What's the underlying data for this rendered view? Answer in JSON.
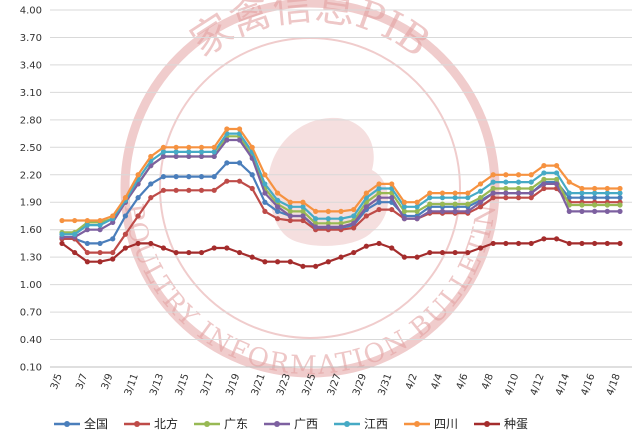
{
  "watermark": {
    "text_top": "家禽信息PIB",
    "text_bottom": "POULTRY INFORMATION BULLETIN",
    "color": "#e3a2a2"
  },
  "chart_data": {
    "type": "line",
    "title": "",
    "xlabel": "",
    "ylabel": "",
    "ylim": [
      0.1,
      4.0
    ],
    "yticks": [
      "0.10",
      "0.40",
      "0.70",
      "1.00",
      "1.30",
      "1.60",
      "1.90",
      "2.20",
      "2.50",
      "2.80",
      "3.10",
      "3.40",
      "3.70",
      "4.00"
    ],
    "grid": "horizontal",
    "legend_position": "bottom",
    "x": [
      "3/5",
      "3/6",
      "3/7",
      "3/8",
      "3/9",
      "3/10",
      "3/11",
      "3/12",
      "3/13",
      "3/14",
      "3/15",
      "3/16",
      "3/17",
      "3/18",
      "3/19",
      "3/20",
      "3/21",
      "3/22",
      "3/23",
      "3/24",
      "3/25",
      "3/26",
      "3/27",
      "3/28",
      "3/29",
      "3/30",
      "3/31",
      "4/1",
      "4/2",
      "4/3",
      "4/4",
      "4/5",
      "4/6",
      "4/7",
      "4/8",
      "4/9",
      "4/10",
      "4/11",
      "4/12",
      "4/13",
      "4/14",
      "4/15",
      "4/16",
      "4/17",
      "4/18"
    ],
    "x_tick_labels": [
      "3/5",
      "3/7",
      "3/9",
      "3/11",
      "3/13",
      "3/15",
      "3/17",
      "3/19",
      "3/21",
      "3/23",
      "3/25",
      "3/27",
      "3/29",
      "3/31",
      "4/2",
      "4/4",
      "4/6",
      "4/8",
      "4/10",
      "4/12",
      "4/14",
      "4/16",
      "4/18"
    ],
    "series": [
      {
        "name": "全国",
        "color": "#4a7ebb",
        "values": [
          1.5,
          1.5,
          1.45,
          1.45,
          1.5,
          1.75,
          1.95,
          2.1,
          2.18,
          2.18,
          2.18,
          2.18,
          2.18,
          2.33,
          2.33,
          2.2,
          1.9,
          1.8,
          1.75,
          1.75,
          1.62,
          1.62,
          1.62,
          1.65,
          1.82,
          1.9,
          1.9,
          1.75,
          1.75,
          1.85,
          1.85,
          1.85,
          1.85,
          1.92,
          2.0,
          2.0,
          2.0,
          2.0,
          2.12,
          2.12,
          1.95,
          1.95,
          1.95,
          1.95,
          1.95
        ]
      },
      {
        "name": "北方",
        "color": "#be4b48",
        "values": [
          1.5,
          1.5,
          1.35,
          1.35,
          1.35,
          1.55,
          1.75,
          1.95,
          2.03,
          2.03,
          2.03,
          2.03,
          2.03,
          2.13,
          2.13,
          2.05,
          1.8,
          1.72,
          1.7,
          1.7,
          1.6,
          1.6,
          1.6,
          1.62,
          1.75,
          1.82,
          1.82,
          1.72,
          1.72,
          1.78,
          1.78,
          1.78,
          1.78,
          1.85,
          1.95,
          1.95,
          1.95,
          1.95,
          2.05,
          2.05,
          1.9,
          1.9,
          1.9,
          1.9,
          1.9
        ]
      },
      {
        "name": "广东",
        "color": "#98b954",
        "values": [
          1.57,
          1.57,
          1.68,
          1.68,
          1.72,
          1.9,
          2.1,
          2.3,
          2.4,
          2.4,
          2.4,
          2.4,
          2.4,
          2.62,
          2.62,
          2.4,
          2.05,
          1.88,
          1.8,
          1.8,
          1.67,
          1.67,
          1.67,
          1.7,
          1.9,
          2.0,
          2.0,
          1.8,
          1.8,
          1.88,
          1.88,
          1.88,
          1.88,
          1.95,
          2.05,
          2.05,
          2.05,
          2.05,
          2.15,
          2.15,
          1.87,
          1.87,
          1.87,
          1.87,
          1.87
        ]
      },
      {
        "name": "广西",
        "color": "#7d60a0",
        "values": [
          1.52,
          1.52,
          1.6,
          1.6,
          1.68,
          1.9,
          2.1,
          2.3,
          2.4,
          2.4,
          2.4,
          2.4,
          2.4,
          2.58,
          2.58,
          2.38,
          2.0,
          1.85,
          1.75,
          1.75,
          1.63,
          1.63,
          1.63,
          1.67,
          1.85,
          1.95,
          1.95,
          1.72,
          1.72,
          1.8,
          1.8,
          1.8,
          1.8,
          1.9,
          2.0,
          2.0,
          2.0,
          2.0,
          2.1,
          2.1,
          1.8,
          1.8,
          1.8,
          1.8,
          1.8
        ]
      },
      {
        "name": "江西",
        "color": "#46aac5",
        "values": [
          1.55,
          1.55,
          1.65,
          1.65,
          1.72,
          1.92,
          2.15,
          2.35,
          2.45,
          2.45,
          2.45,
          2.45,
          2.45,
          2.65,
          2.65,
          2.45,
          2.1,
          1.92,
          1.85,
          1.85,
          1.72,
          1.72,
          1.72,
          1.75,
          1.95,
          2.05,
          2.05,
          1.85,
          1.85,
          1.95,
          1.95,
          1.95,
          1.95,
          2.02,
          2.12,
          2.12,
          2.12,
          2.12,
          2.22,
          2.22,
          2.0,
          2.0,
          2.0,
          2.0,
          2.0
        ]
      },
      {
        "name": "四川",
        "color": "#f69240",
        "values": [
          1.7,
          1.7,
          1.7,
          1.7,
          1.75,
          1.95,
          2.2,
          2.4,
          2.5,
          2.5,
          2.5,
          2.5,
          2.5,
          2.7,
          2.7,
          2.5,
          2.2,
          2.0,
          1.9,
          1.9,
          1.8,
          1.8,
          1.8,
          1.82,
          2.0,
          2.1,
          2.1,
          1.9,
          1.9,
          2.0,
          2.0,
          2.0,
          2.0,
          2.1,
          2.2,
          2.2,
          2.2,
          2.2,
          2.3,
          2.3,
          2.12,
          2.05,
          2.05,
          2.05,
          2.05
        ]
      },
      {
        "name": "种蛋",
        "color": "#a42c2c",
        "values": [
          1.45,
          1.35,
          1.25,
          1.25,
          1.28,
          1.4,
          1.45,
          1.45,
          1.4,
          1.35,
          1.35,
          1.35,
          1.4,
          1.4,
          1.35,
          1.3,
          1.25,
          1.25,
          1.25,
          1.2,
          1.2,
          1.25,
          1.3,
          1.35,
          1.42,
          1.45,
          1.4,
          1.3,
          1.3,
          1.35,
          1.35,
          1.35,
          1.35,
          1.4,
          1.45,
          1.45,
          1.45,
          1.45,
          1.5,
          1.5,
          1.45,
          1.45,
          1.45,
          1.45,
          1.45
        ]
      }
    ]
  }
}
